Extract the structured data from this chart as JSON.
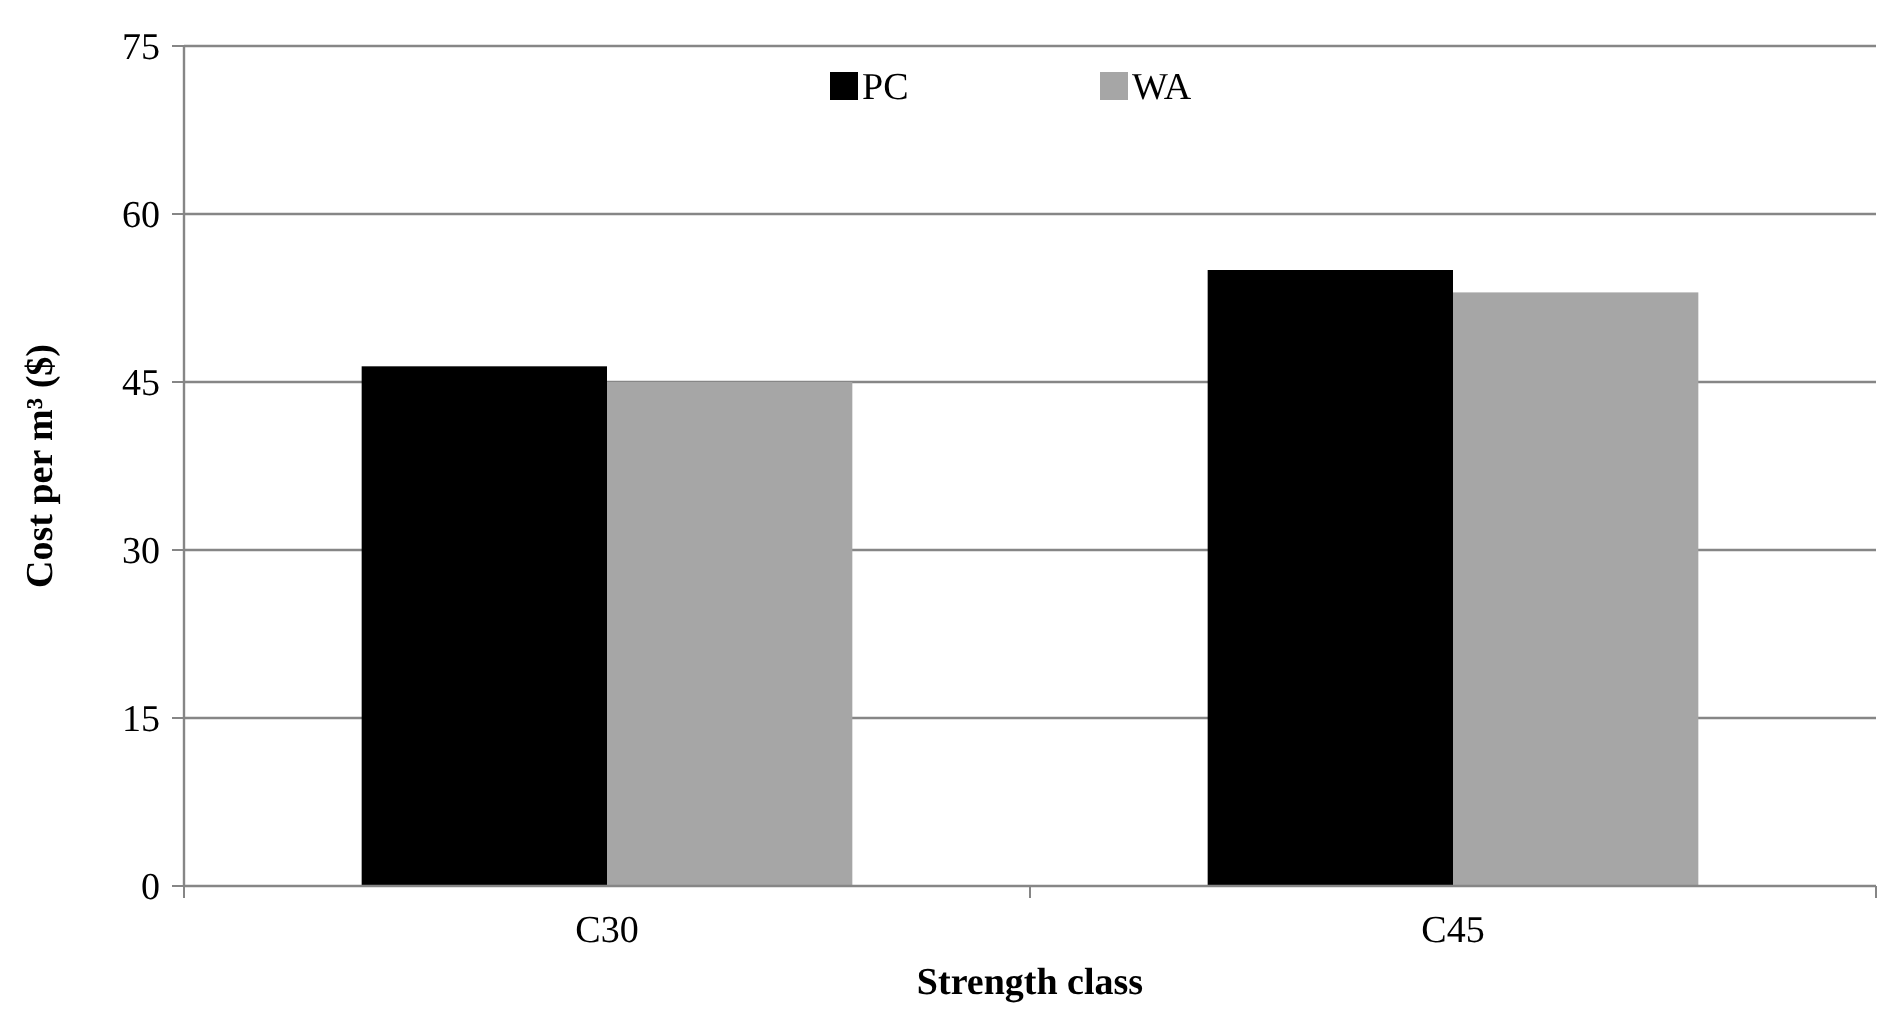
{
  "chart_data": {
    "type": "bar",
    "xlabel": "Strength class",
    "ylabel": "Cost per m³ ($)",
    "categories": [
      "C30",
      "C45"
    ],
    "series": [
      {
        "name": "PC",
        "color": "#000000",
        "values": [
          46.4,
          55
        ]
      },
      {
        "name": "WA",
        "color": "#a6a6a6",
        "values": [
          45,
          53
        ]
      }
    ],
    "ylim": [
      0,
      75
    ],
    "yticks": [
      0,
      15,
      30,
      45,
      60,
      75
    ],
    "grid": "y",
    "legend": "top"
  }
}
